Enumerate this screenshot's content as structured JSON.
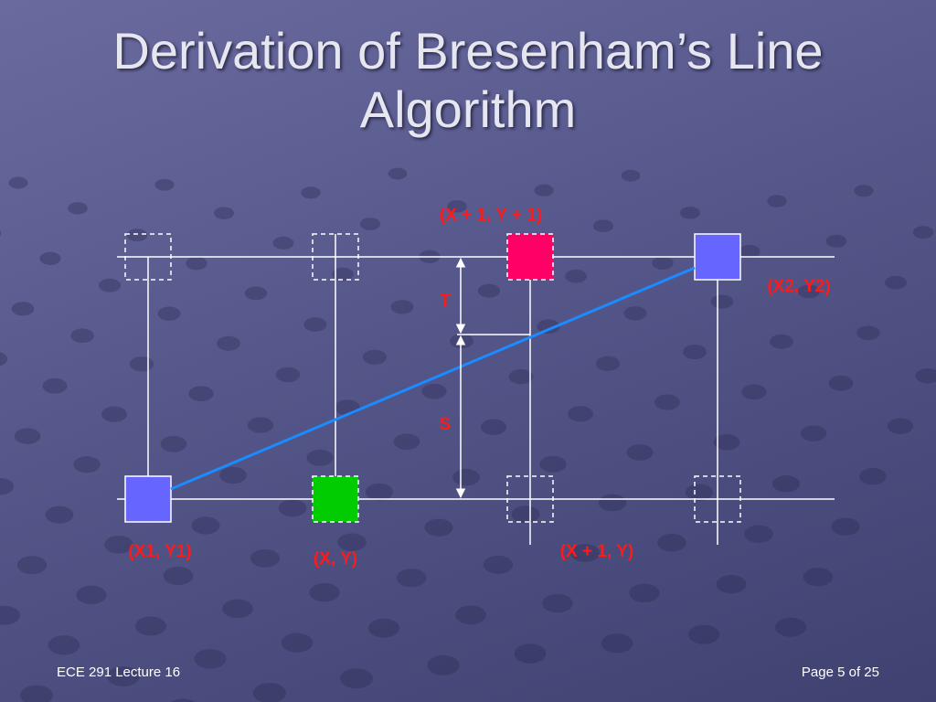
{
  "title": "Derivation of Bresenham’s Line Algorithm",
  "labels": {
    "top_next": "(X + 1, Y + 1)",
    "end": "(X2, Y2)",
    "t": "T",
    "s": "S",
    "start": "(X1, Y1)",
    "current": "(X, Y)",
    "bottom_next": "(X + 1, Y)"
  },
  "footer": {
    "left": "ECE 291 Lecture 16",
    "right": "Page 5 of 25"
  }
}
